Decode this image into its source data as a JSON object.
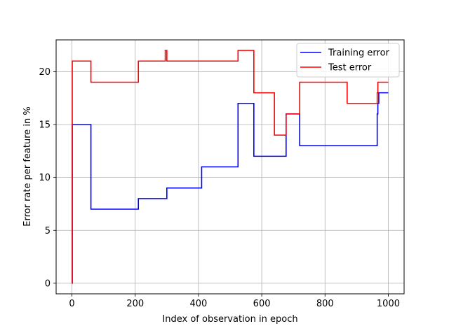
{
  "chart_data": {
    "type": "line",
    "title": "",
    "xlabel": "Index of observation in epoch",
    "ylabel": "Error rate per feature in %",
    "xlim": [
      -50,
      1050
    ],
    "ylim": [
      -1,
      23
    ],
    "xticks": [
      0,
      200,
      400,
      600,
      800,
      1000
    ],
    "yticks": [
      0,
      5,
      10,
      15,
      20
    ],
    "grid": true,
    "legend_position": "top-right",
    "series": [
      {
        "name": "Training error",
        "color": "#0000ff",
        "step_x": [
          0,
          1,
          60,
          210,
          300,
          410,
          525,
          575,
          677,
          720,
          965,
          967,
          970,
          1000
        ],
        "step_y": [
          0,
          15,
          7,
          8,
          9,
          11,
          17,
          12,
          16,
          13,
          16,
          17,
          18,
          18
        ]
      },
      {
        "name": "Test error",
        "color": "#ff0000",
        "step_x": [
          0,
          1,
          60,
          210,
          295,
          298,
          300,
          525,
          575,
          640,
          675,
          677,
          720,
          870,
          965,
          967,
          970,
          1000
        ],
        "step_y": [
          0,
          21,
          19,
          21,
          22,
          22,
          21,
          22,
          18,
          14,
          14,
          16,
          19,
          17,
          18,
          19,
          19,
          19
        ]
      }
    ]
  }
}
